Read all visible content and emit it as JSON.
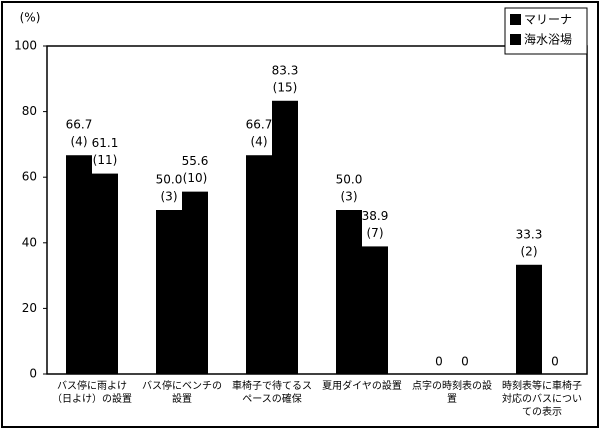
{
  "chart_data": {
    "type": "bar",
    "y_label": "(%)",
    "categories": [
      "バス停に雨よけ（日よけ）の設置",
      "バス停にベンチの設置",
      "車椅子で待てるスペースの確保",
      "夏用ダイヤの設置",
      "点字の時刻表の設置",
      "時刻表等に車椅子対応のバスについての表示"
    ],
    "series": [
      {
        "name": "マリーナ",
        "color": "#000000",
        "values": [
          66.7,
          50.0,
          66.7,
          50.0,
          0,
          33.3
        ],
        "value_labels": [
          "66.7",
          "50.0",
          "66.7",
          "50.0",
          "0",
          "33.3"
        ],
        "count_labels": [
          "(4)",
          "(3)",
          "(4)",
          "(3)",
          null,
          "(2)"
        ]
      },
      {
        "name": "海水浴場",
        "color": "#000000",
        "values": [
          61.1,
          55.6,
          83.3,
          38.9,
          0,
          0
        ],
        "value_labels": [
          "61.1",
          "55.6",
          "83.3",
          "38.9",
          "0",
          "0"
        ],
        "count_labels": [
          "(11)",
          "(10)",
          "(15)",
          "(7)",
          null,
          null
        ]
      }
    ],
    "ylim": [
      0,
      100
    ],
    "yticks": [
      0,
      20,
      40,
      60,
      80,
      100
    ],
    "grid": false,
    "legend": "top-right"
  }
}
